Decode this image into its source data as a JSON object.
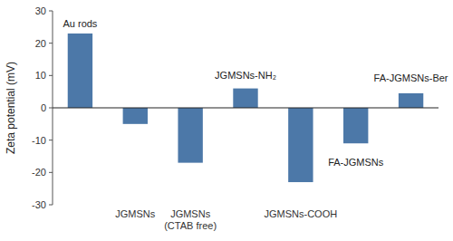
{
  "chart_data": {
    "type": "bar",
    "ylabel": "Zeta potential (mV)",
    "categories": [
      null,
      "JGMSNs",
      "JGMSNs\n(CTAB free)",
      null,
      "JGMSNs-COOH",
      null,
      null
    ],
    "values": [
      23,
      -5,
      -17,
      6,
      -23,
      -11,
      4.5
    ],
    "color": "#4c78a8",
    "ylim": [
      -30,
      30
    ],
    "yticks": [
      -30,
      -20,
      -10,
      0,
      10,
      20,
      30
    ],
    "grid": false,
    "annotations": [
      {
        "text": "Au rods",
        "x": 0,
        "y": 25
      },
      {
        "text": "JGMSNs-NH₂",
        "x": 3,
        "y": 9
      },
      {
        "text": "FA-JGMSNs-Ber",
        "x": 6,
        "y": 8
      },
      {
        "text": "FA-JGMSNs",
        "x": 5,
        "y": -15
      }
    ]
  }
}
